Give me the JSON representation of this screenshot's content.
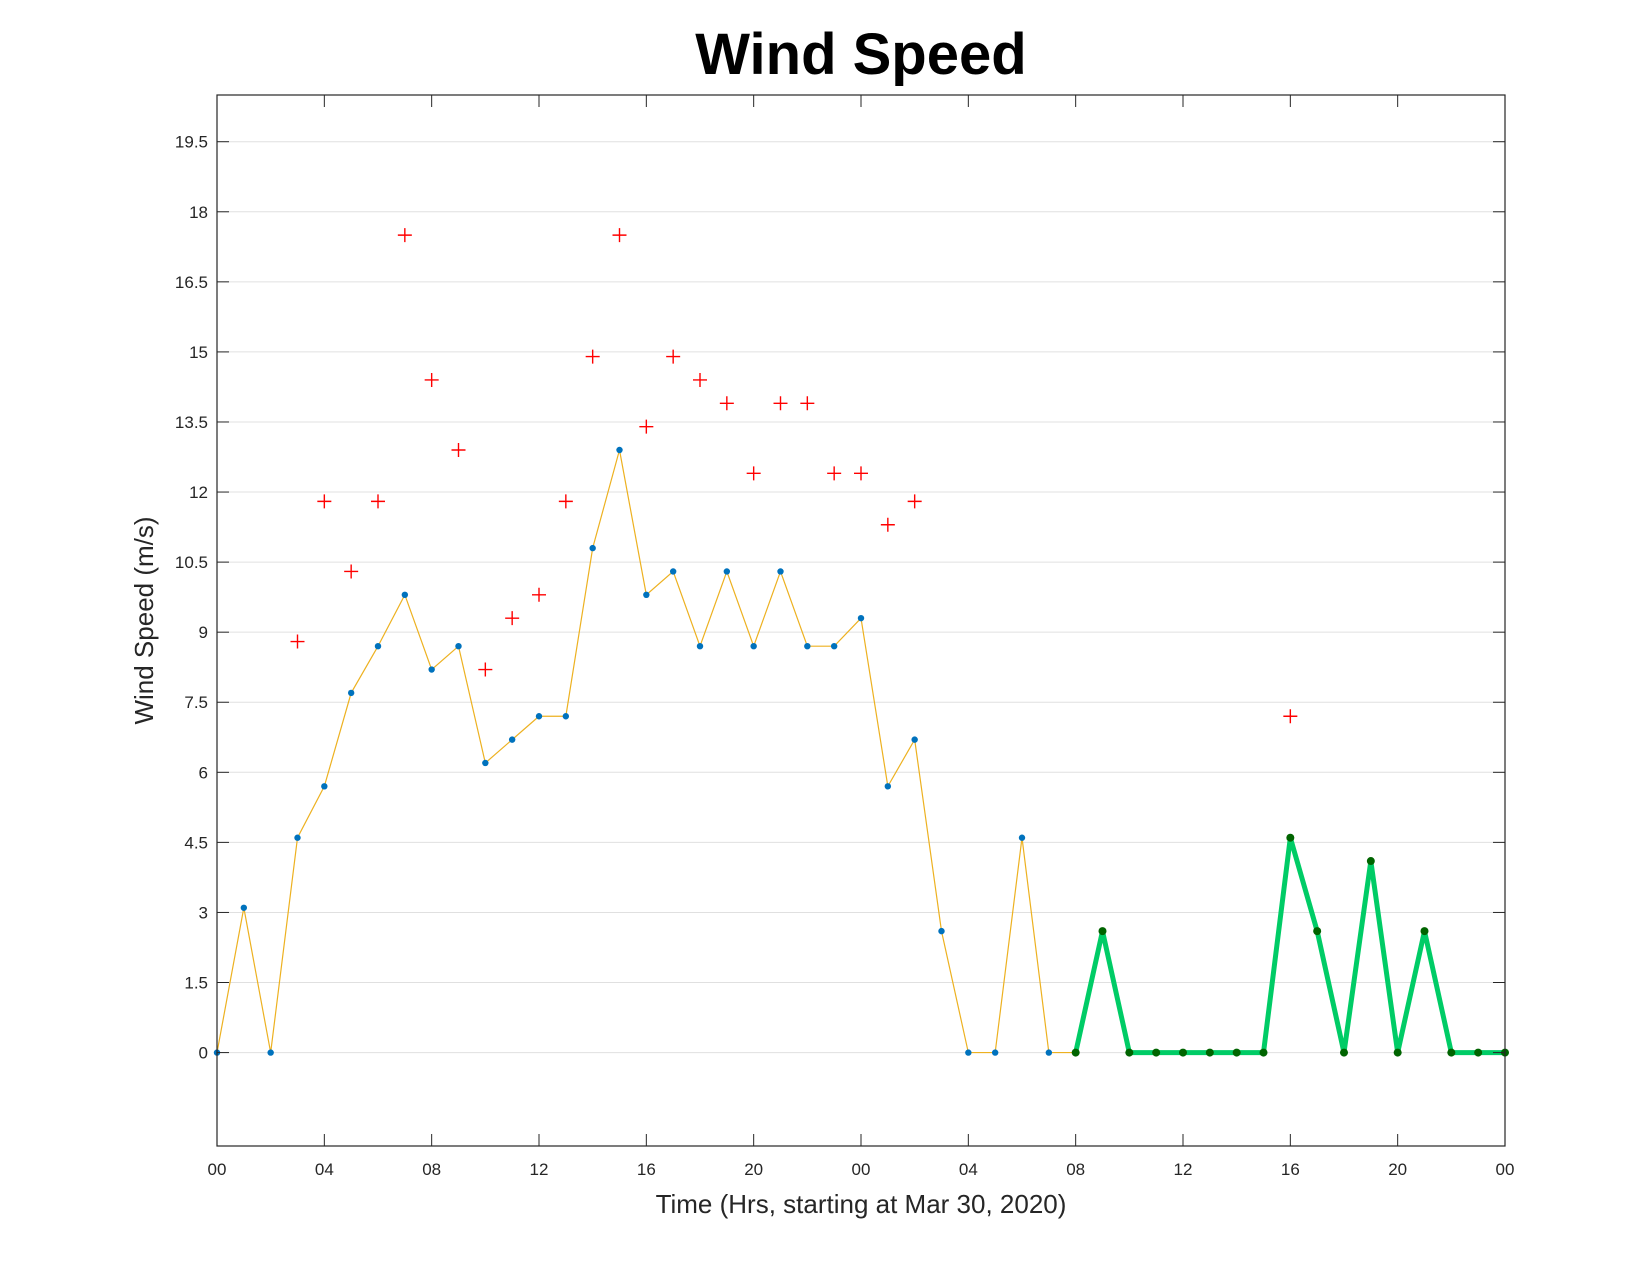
{
  "chart_data": {
    "type": "line",
    "title": "Wind Speed",
    "xlabel": "Time (Hrs, starting at Mar 30, 2020)",
    "ylabel": "Wind Speed (m/s)",
    "xlim": [
      0,
      48
    ],
    "ylim": [
      -2,
      20.5
    ],
    "grid": "horizontal",
    "x_ticks": [
      0,
      4,
      8,
      12,
      16,
      20,
      24,
      28,
      32,
      36,
      40,
      44,
      48
    ],
    "x_tick_labels": [
      "00",
      "04",
      "08",
      "12",
      "16",
      "20",
      "00",
      "04",
      "08",
      "12",
      "16",
      "20",
      "00"
    ],
    "y_ticks": [
      0,
      1.5,
      3,
      4.5,
      6,
      7.5,
      9,
      10.5,
      12,
      13.5,
      15,
      16.5,
      18,
      19.5
    ],
    "y_tick_labels": [
      "0",
      "1.5",
      "3",
      "4.5",
      "6",
      "7.5",
      "9",
      "10.5",
      "12",
      "13.5",
      "15",
      "16.5",
      "18",
      "19.5"
    ],
    "series": [
      {
        "style": "thin-line-with-dots",
        "line_color": "#EDB120",
        "marker_color": "#0072BD",
        "x": [
          0,
          1,
          2,
          3,
          4,
          5,
          6,
          7,
          8,
          9,
          10,
          11,
          12,
          13,
          14,
          15,
          16,
          17,
          18,
          19,
          20,
          21,
          22,
          23,
          24,
          25,
          26,
          27,
          28,
          29,
          30,
          31,
          32
        ],
        "values": [
          0,
          3.1,
          0,
          4.6,
          5.7,
          7.7,
          8.7,
          9.8,
          8.2,
          8.7,
          6.2,
          6.7,
          7.2,
          7.2,
          10.8,
          12.9,
          9.8,
          10.3,
          8.7,
          10.3,
          8.7,
          10.3,
          8.7,
          8.7,
          9.3,
          5.7,
          6.7,
          2.6,
          0,
          0,
          4.6,
          0,
          0
        ]
      },
      {
        "style": "plus-markers",
        "marker_color": "#FF0000",
        "x": [
          3,
          4,
          5,
          6,
          7,
          8,
          9,
          10,
          11,
          12,
          13,
          14,
          15,
          16,
          17,
          18,
          19,
          20,
          21,
          22,
          23,
          24,
          25,
          26,
          40
        ],
        "values": [
          8.8,
          11.8,
          10.3,
          11.8,
          17.5,
          14.4,
          12.9,
          8.2,
          9.3,
          9.8,
          11.8,
          14.9,
          17.5,
          13.4,
          14.9,
          14.4,
          13.9,
          12.4,
          13.9,
          13.9,
          12.4,
          12.4,
          11.3,
          11.8,
          7.2
        ]
      },
      {
        "style": "thick-line-with-dots",
        "line_color": "#00CC66",
        "marker_color": "#006400",
        "x": [
          32,
          33,
          34,
          35,
          36,
          37,
          38,
          39,
          40,
          41,
          42,
          43,
          44,
          45,
          46,
          47,
          48
        ],
        "values": [
          0,
          2.6,
          0,
          0,
          0,
          0,
          0,
          0,
          4.6,
          2.6,
          0,
          4.1,
          0,
          2.6,
          0,
          0,
          0
        ]
      }
    ]
  }
}
